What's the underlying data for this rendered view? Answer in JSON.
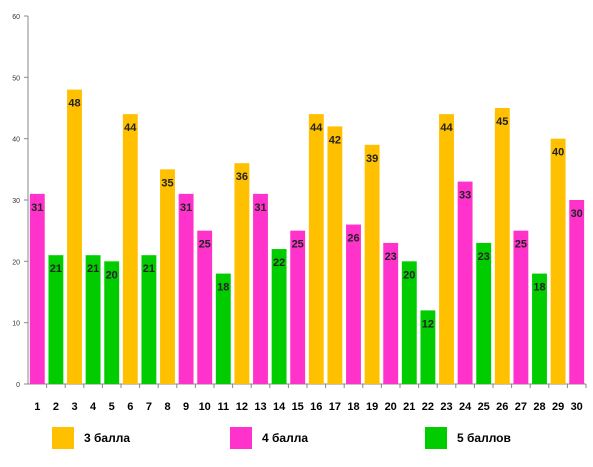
{
  "chart_data": {
    "type": "bar",
    "categories": [
      "1",
      "2",
      "3",
      "4",
      "5",
      "6",
      "7",
      "8",
      "9",
      "10",
      "11",
      "12",
      "13",
      "14",
      "15",
      "16",
      "17",
      "18",
      "19",
      "20",
      "21",
      "22",
      "23",
      "24",
      "25",
      "26",
      "27",
      "28",
      "29",
      "30"
    ],
    "values": [
      31,
      21,
      48,
      21,
      20,
      44,
      21,
      35,
      31,
      25,
      18,
      36,
      31,
      22,
      25,
      44,
      42,
      26,
      39,
      23,
      20,
      12,
      44,
      33,
      23,
      45,
      25,
      18,
      40,
      30
    ],
    "groups": [
      "4",
      "5",
      "3",
      "5",
      "5",
      "3",
      "5",
      "3",
      "4",
      "4",
      "5",
      "3",
      "4",
      "5",
      "4",
      "3",
      "3",
      "4",
      "3",
      "4",
      "5",
      "5",
      "3",
      "4",
      "5",
      "3",
      "4",
      "5",
      "3",
      "4"
    ],
    "ylim": [
      0,
      60
    ],
    "yticks": [
      0,
      10,
      20,
      30,
      40,
      50,
      60
    ],
    "grid": false,
    "data_labels": true,
    "legend_placement": "bottom",
    "series": [
      {
        "key": "3",
        "name": "3 балла",
        "color": "#FFC000"
      },
      {
        "key": "4",
        "name": "4 балла",
        "color": "#FF33CC"
      },
      {
        "key": "5",
        "name": "5 баллов",
        "color": "#00CC00"
      }
    ]
  }
}
